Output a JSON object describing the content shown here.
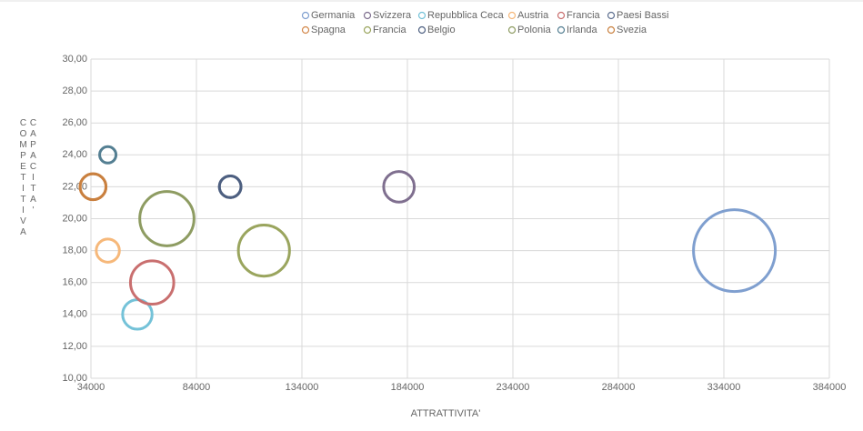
{
  "chart_data": {
    "type": "bubble",
    "x_label": "ATTRATTIVITA'",
    "y_label": "CAPACITA' COMPETITIVA",
    "xlim": [
      34000,
      384000
    ],
    "xticks": [
      34000,
      84000,
      134000,
      184000,
      234000,
      284000,
      334000,
      384000
    ],
    "ylim": [
      10,
      30
    ],
    "yticks": [
      {
        "value": 10,
        "label": "10,00"
      },
      {
        "value": 12,
        "label": "12,00"
      },
      {
        "value": 14,
        "label": "14,00"
      },
      {
        "value": 16,
        "label": "16,00"
      },
      {
        "value": 18,
        "label": "18,00"
      },
      {
        "value": 20,
        "label": "20,00"
      },
      {
        "value": 22,
        "label": "22,00"
      },
      {
        "value": 24,
        "label": "24,00"
      },
      {
        "value": 26,
        "label": "26,00"
      },
      {
        "value": 28,
        "label": "28,00"
      },
      {
        "value": 30,
        "label": "30,00"
      }
    ],
    "grid": true,
    "series": [
      {
        "name": "Germania",
        "color": "#7f9fcf",
        "x": [
          339000
        ],
        "values": [
          18
        ],
        "sizes": [
          100
        ]
      },
      {
        "name": "Svizzera",
        "color": "#7f6f8f",
        "x": [
          180000
        ],
        "values": [
          22
        ],
        "sizes": [
          14
        ]
      },
      {
        "name": "Repubblica Ceca",
        "color": "#74c2d8",
        "x": [
          56000
        ],
        "values": [
          14
        ],
        "sizes": [
          13
        ]
      },
      {
        "name": "Austria",
        "color": "#f6b87a",
        "x": [
          42000
        ],
        "values": [
          18
        ],
        "sizes": [
          8
        ]
      },
      {
        "name": "Francia",
        "color": "#c96f6f",
        "x": [
          63000
        ],
        "values": [
          16
        ],
        "sizes": [
          28
        ]
      },
      {
        "name": "Paesi Bassi",
        "color": "#5f7090",
        "x": [
          100000
        ],
        "values": [
          22
        ],
        "sizes": [
          7
        ]
      },
      {
        "name": "Spagna",
        "color": "#d3884a",
        "x": [
          35000
        ],
        "values": [
          22
        ],
        "sizes": [
          10
        ]
      },
      {
        "name": "Francia",
        "color": "#9aa55e",
        "x": [
          116000
        ],
        "values": [
          18
        ],
        "sizes": [
          39
        ]
      },
      {
        "name": "Belgio",
        "color": "#4d5f80",
        "x": [
          100000
        ],
        "values": [
          22
        ],
        "sizes": [
          7
        ]
      },
      {
        "name": "Polonia",
        "color": "#8e9c62",
        "x": [
          70000
        ],
        "values": [
          20
        ],
        "sizes": [
          44
        ]
      },
      {
        "name": "Irlanda",
        "color": "#547f92",
        "x": [
          42000
        ],
        "values": [
          24
        ],
        "sizes": [
          4
        ]
      },
      {
        "name": "Svezia",
        "color": "#c9803f",
        "x": [
          35000
        ],
        "values": [
          22
        ],
        "sizes": [
          10
        ]
      }
    ]
  }
}
